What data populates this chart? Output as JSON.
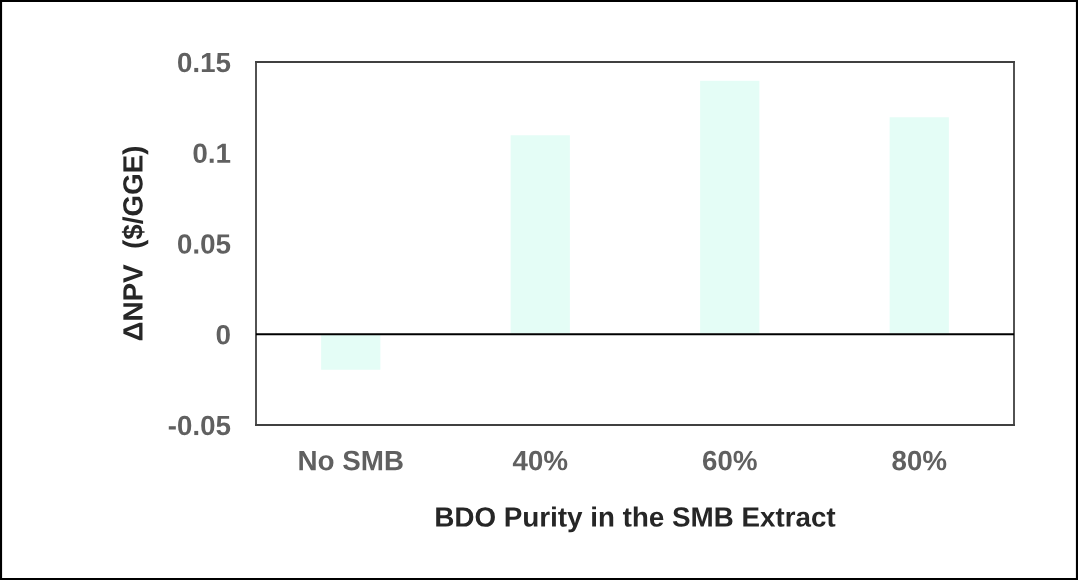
{
  "chart_data": {
    "type": "bar",
    "xlabel": "BDO Purity in the SMB Extract",
    "ylabel": "ΔNPV  ($/GGE)",
    "categories": [
      "No SMB",
      "40%",
      "60%",
      "80%"
    ],
    "values": [
      -0.02,
      0.11,
      0.14,
      0.12
    ],
    "color": "#e4fdf6",
    "ylim": [
      -0.05,
      0.15
    ],
    "yticks": [
      -0.05,
      0,
      0.05,
      0.1,
      0.15
    ],
    "grid": false,
    "ref_lines": [
      {
        "axis": "y",
        "value": 0,
        "color": "#000000"
      }
    ]
  }
}
